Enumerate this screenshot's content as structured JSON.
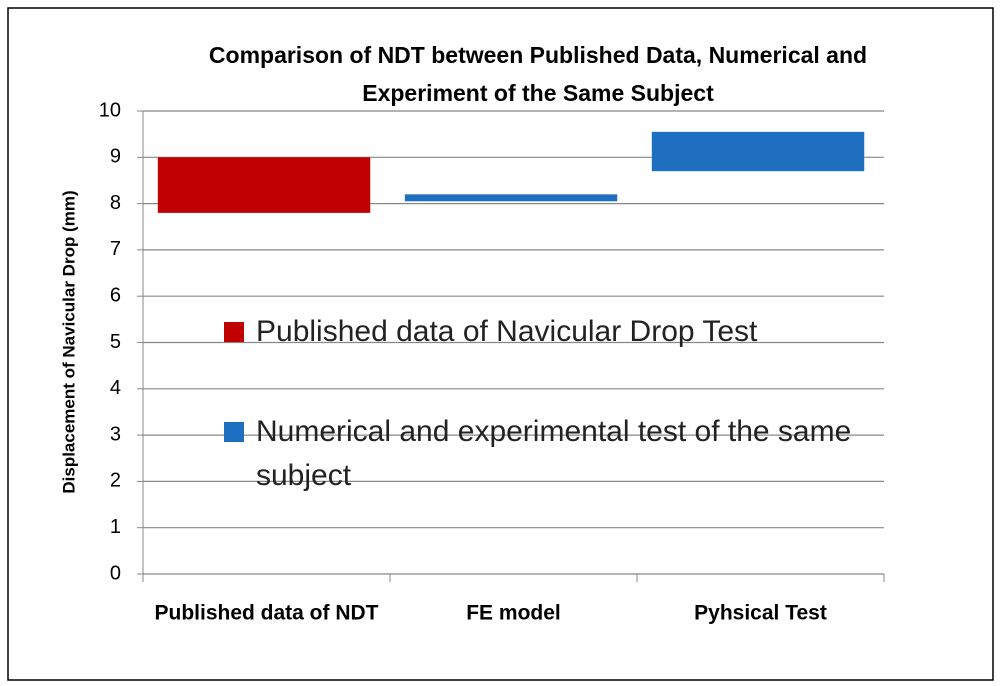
{
  "chart_data": {
    "type": "range_bar",
    "title": "Comparison of NDT between Published Data, Numerical and Experiment of the Same Subject",
    "y_label": "Displacement of Navicular Drop (mm)",
    "categories": [
      "Published data of NDT",
      "FE model",
      "Pyhsical Test"
    ],
    "series": [
      {
        "name": "Published data of Navicular Drop Test",
        "color": "#c00000",
        "low": [
          7.8,
          null,
          null
        ],
        "high": [
          9.0,
          null,
          null
        ]
      },
      {
        "name": "Numerical and experimental test of the same subject",
        "color": "#1f6fc0",
        "low": [
          null,
          8.05,
          8.7
        ],
        "high": [
          null,
          8.2,
          9.55
        ]
      }
    ],
    "ylim": [
      0,
      10
    ],
    "yticks": [
      0,
      1,
      2,
      3,
      4,
      5,
      6,
      7,
      8,
      9,
      10
    ],
    "grid": true
  }
}
